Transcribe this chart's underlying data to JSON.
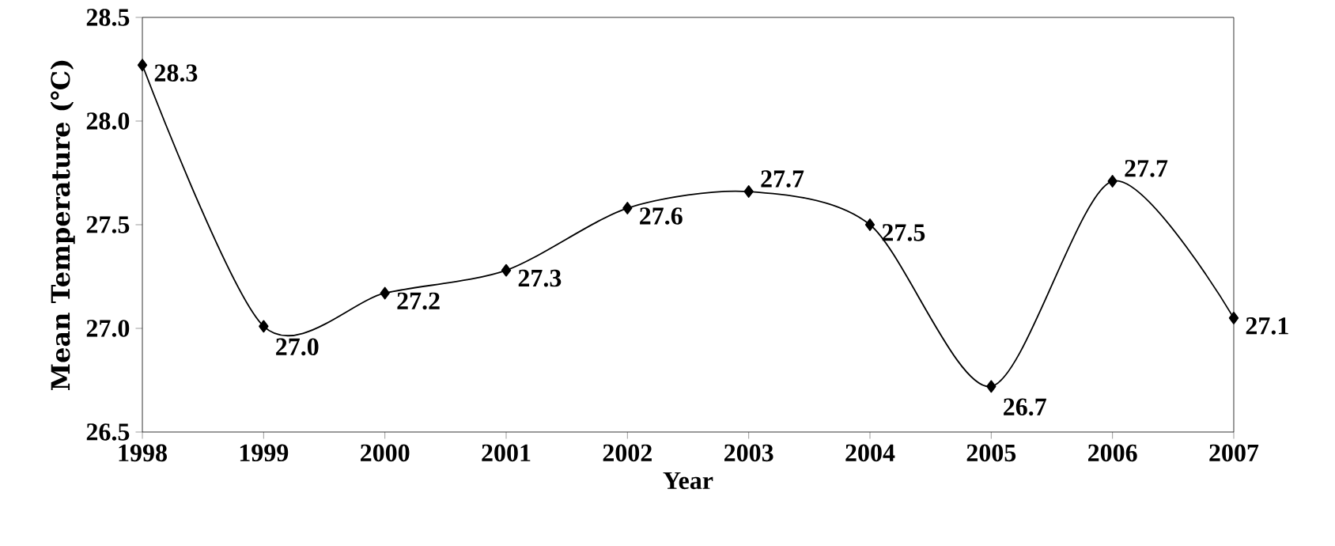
{
  "chart_data": {
    "type": "line",
    "xlabel": "Year",
    "ylabel": "Mean Temperature (℃)",
    "categories": [
      "1998",
      "1999",
      "2000",
      "2001",
      "2002",
      "2003",
      "2004",
      "2005",
      "2006",
      "2007"
    ],
    "values": [
      28.27,
      27.01,
      27.17,
      27.28,
      27.58,
      27.66,
      27.5,
      26.72,
      27.71,
      27.05
    ],
    "value_labels": [
      "28.3",
      "27.0",
      "27.2",
      "27.3",
      "27.6",
      "27.7",
      "27.5",
      "26.7",
      "27.7",
      "27.1"
    ],
    "color": "#000000",
    "marker": "diamond",
    "line_style": "solid",
    "grid": false,
    "legend": false,
    "ylim": [
      26.5,
      28.5
    ],
    "yticks": [
      {
        "value": 26.5,
        "label": "26.5"
      },
      {
        "value": 27,
        "label": "27.0"
      },
      {
        "value": 27.5,
        "label": "27.5"
      },
      {
        "value": 28,
        "label": "28.0"
      },
      {
        "value": 28.5,
        "label": "28.5"
      }
    ]
  }
}
